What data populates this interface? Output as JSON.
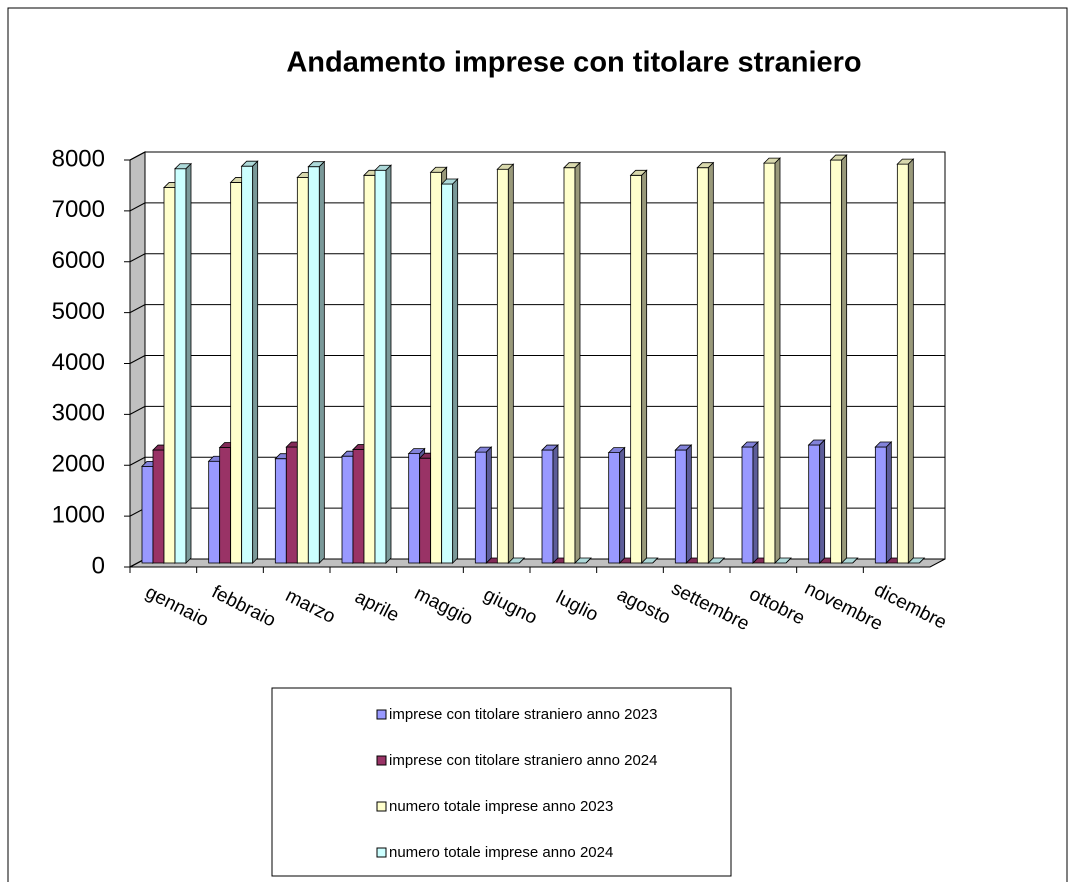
{
  "chart_data": {
    "type": "bar3d",
    "title": "Andamento imprese con titolare straniero",
    "categories": [
      "gennaio",
      "febbraio",
      "marzo",
      "aprile",
      "maggio",
      "giugno",
      "luglio",
      "agosto",
      "settembre",
      "ottobre",
      "novembre",
      "dicembre"
    ],
    "series": [
      {
        "name": "imprese con titolare straniero anno 2023",
        "color": "#9999ff",
        "values": [
          1900,
          2000,
          2050,
          2100,
          2150,
          2180,
          2220,
          2170,
          2220,
          2280,
          2320,
          2280
        ]
      },
      {
        "name": "imprese con titolare straniero anno 2024",
        "color": "#993366",
        "values": [
          2220,
          2270,
          2280,
          2230,
          2060,
          0,
          0,
          0,
          0,
          0,
          0,
          0
        ]
      },
      {
        "name": "numero totale imprese anno 2023",
        "color": "#ffffcc",
        "values": [
          7380,
          7480,
          7580,
          7620,
          7680,
          7740,
          7770,
          7620,
          7770,
          7860,
          7920,
          7840
        ]
      },
      {
        "name": "numero totale imprese anno 2024",
        "color": "#ccffff",
        "values": [
          7750,
          7800,
          7790,
          7720,
          7450,
          0,
          0,
          0,
          0,
          0,
          0,
          0
        ]
      }
    ],
    "ylim": [
      0,
      8000
    ],
    "yticks": [
      0,
      1000,
      2000,
      3000,
      4000,
      5000,
      6000,
      7000,
      8000
    ],
    "grid": true
  }
}
